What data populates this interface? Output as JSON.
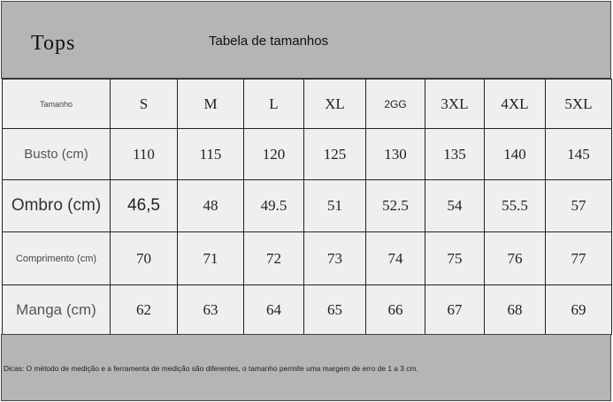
{
  "header": {
    "title": "Tops",
    "subtitle": "Tabela de tamanhos"
  },
  "table": {
    "columns": [
      "Tamanho",
      "S",
      "M",
      "L",
      "XL",
      "2GG",
      "3XL",
      "4XL",
      "5XL"
    ],
    "rows": [
      [
        "Busto (cm)",
        "110",
        "115",
        "120",
        "125",
        "130",
        "135",
        "140",
        "145"
      ],
      [
        "Ombro (cm)",
        "46,5",
        "48",
        "49.5",
        "51",
        "52.5",
        "54",
        "55.5",
        "57"
      ],
      [
        "Comprimento (cm)",
        "70",
        "71",
        "72",
        "73",
        "74",
        "75",
        "76",
        "77"
      ],
      [
        "Manga (cm)",
        "62",
        "63",
        "64",
        "65",
        "66",
        "67",
        "68",
        "69"
      ]
    ]
  },
  "footer": {
    "note": "Dicas: O método de medição e a ferramenta de medição são diferentes, o tamanho permite uma margem de erro de 1 a 3 cm."
  }
}
